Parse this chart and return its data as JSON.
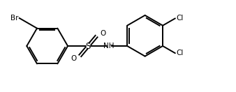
{
  "bg_color": "#ffffff",
  "line_color": "#000000",
  "line_width": 1.4,
  "font_size_labels": 7.5,
  "br_label": "Br",
  "cl_label1": "Cl",
  "cl_label2": "Cl",
  "s_label": "S",
  "o_label1": "O",
  "o_label2": "O",
  "nh_label": "NH",
  "figsize": [
    3.38,
    1.32
  ],
  "dpi": 100
}
